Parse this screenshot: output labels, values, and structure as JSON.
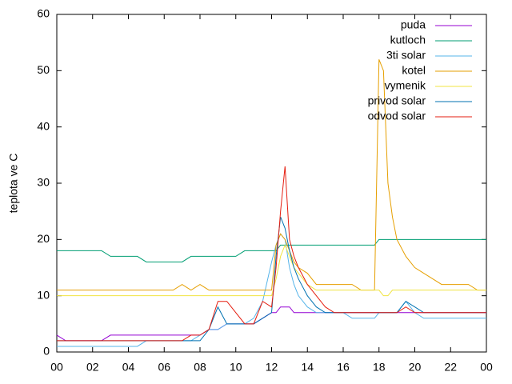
{
  "chart_data": {
    "type": "line",
    "ylabel": "teplota ve C",
    "x": [
      0,
      0.5,
      1,
      1.5,
      2,
      2.5,
      3,
      3.5,
      4,
      4.5,
      5,
      5.5,
      6,
      6.5,
      7,
      7.5,
      8,
      8.5,
      9,
      9.5,
      10,
      10.5,
      11,
      11.5,
      12,
      12.25,
      12.5,
      12.75,
      13,
      13.25,
      13.5,
      14,
      14.5,
      15,
      15.5,
      16,
      16.5,
      17,
      17.5,
      17.75,
      18,
      18.25,
      18.5,
      18.75,
      19,
      19.5,
      20,
      20.5,
      21,
      21.5,
      22,
      22.5,
      23,
      23.5,
      24
    ],
    "series": [
      {
        "name": "puda",
        "color": "#9400d3",
        "values": [
          3,
          2,
          2,
          2,
          2,
          2,
          3,
          3,
          3,
          3,
          3,
          3,
          3,
          3,
          3,
          3,
          3,
          4,
          4,
          5,
          5,
          5,
          5,
          6,
          7,
          7,
          8,
          8,
          8,
          7,
          7,
          7,
          7,
          7,
          7,
          7,
          7,
          7,
          7,
          7,
          7,
          7,
          7,
          7,
          7,
          7,
          7,
          7,
          7,
          7,
          7,
          7,
          7,
          7,
          7
        ]
      },
      {
        "name": "kutloch",
        "color": "#009e73",
        "values": [
          18,
          18,
          18,
          18,
          18,
          18,
          17,
          17,
          17,
          17,
          16,
          16,
          16,
          16,
          16,
          17,
          17,
          17,
          17,
          17,
          17,
          18,
          18,
          18,
          18,
          18,
          19,
          19,
          19,
          19,
          19,
          19,
          19,
          19,
          19,
          19,
          19,
          19,
          19,
          19,
          20,
          20,
          20,
          20,
          20,
          20,
          20,
          20,
          20,
          20,
          20,
          20,
          20,
          20,
          20
        ]
      },
      {
        "name": "3ti solar",
        "color": "#56b4e9",
        "values": [
          1,
          1,
          1,
          1,
          1,
          1,
          1,
          1,
          1,
          1,
          2,
          2,
          2,
          2,
          2,
          2,
          3,
          4,
          4,
          5,
          5,
          5,
          6,
          9,
          16,
          19,
          21,
          20,
          15,
          12,
          10,
          8,
          7,
          7,
          7,
          7,
          6,
          6,
          6,
          6,
          7,
          7,
          7,
          7,
          7,
          9,
          7,
          6,
          6,
          6,
          6,
          6,
          6,
          6,
          6
        ]
      },
      {
        "name": "kotel",
        "color": "#e69f00",
        "values": [
          11,
          11,
          11,
          11,
          11,
          11,
          11,
          11,
          11,
          11,
          11,
          11,
          11,
          11,
          12,
          11,
          12,
          11,
          11,
          11,
          11,
          11,
          11,
          11,
          11,
          19,
          21,
          20,
          18,
          16,
          15,
          14,
          12,
          12,
          12,
          12,
          12,
          11,
          11,
          11,
          52,
          50,
          30,
          24,
          20,
          17,
          15,
          14,
          13,
          12,
          12,
          12,
          12,
          11,
          11
        ]
      },
      {
        "name": "vymenik",
        "color": "#f0e442",
        "values": [
          10,
          10,
          10,
          10,
          10,
          10,
          10,
          10,
          10,
          10,
          10,
          10,
          10,
          10,
          10,
          10,
          10,
          10,
          10,
          10,
          10,
          10,
          10,
          10,
          10,
          13,
          17,
          19,
          17,
          15,
          14,
          12,
          11,
          11,
          11,
          11,
          11,
          11,
          11,
          11,
          11,
          10,
          10,
          11,
          11,
          11,
          11,
          11,
          11,
          11,
          11,
          11,
          11,
          11,
          11
        ]
      },
      {
        "name": "privod solar",
        "color": "#0072b2",
        "values": [
          2,
          2,
          2,
          2,
          2,
          2,
          2,
          2,
          2,
          2,
          2,
          2,
          2,
          2,
          2,
          2,
          2,
          4,
          8,
          5,
          5,
          5,
          5,
          6,
          7,
          17,
          24,
          22,
          18,
          15,
          13,
          10,
          8,
          7,
          7,
          7,
          7,
          7,
          7,
          7,
          7,
          7,
          7,
          7,
          7,
          9,
          8,
          7,
          7,
          7,
          7,
          7,
          7,
          7,
          7
        ]
      },
      {
        "name": "odvod solar",
        "color": "#e51e10",
        "values": [
          2,
          2,
          2,
          2,
          2,
          2,
          2,
          2,
          2,
          2,
          2,
          2,
          2,
          2,
          2,
          3,
          3,
          4,
          9,
          9,
          7,
          5,
          5,
          9,
          8,
          15,
          25,
          33,
          20,
          17,
          15,
          12,
          10,
          8,
          7,
          7,
          7,
          7,
          7,
          7,
          7,
          7,
          7,
          7,
          7,
          8,
          7,
          7,
          7,
          7,
          7,
          7,
          7,
          7,
          7
        ]
      }
    ],
    "xlim": [
      0,
      24
    ],
    "xticks": [
      {
        "value": 0,
        "label": "00"
      },
      {
        "value": 2,
        "label": "02"
      },
      {
        "value": 4,
        "label": "04"
      },
      {
        "value": 6,
        "label": "06"
      },
      {
        "value": 8,
        "label": "08"
      },
      10,
      12,
      14,
      16,
      18,
      20,
      22,
      {
        "value": 24,
        "label": "00"
      }
    ],
    "ylim": [
      0,
      60
    ],
    "yticks": [
      0,
      10,
      20,
      30,
      40,
      50,
      60
    ],
    "legend": "top-right"
  }
}
